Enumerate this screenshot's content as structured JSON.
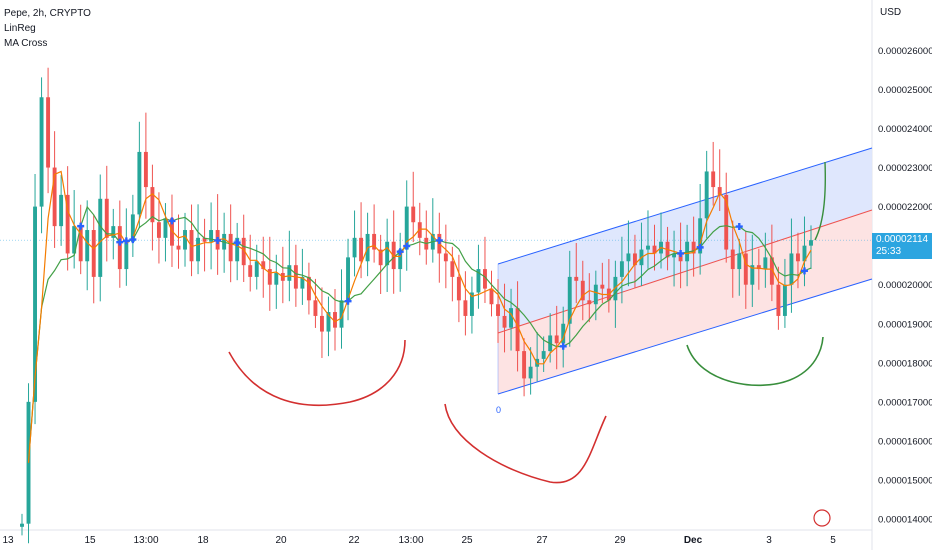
{
  "header": {
    "symbol_line": "Pepe, 2h, CRYPTO",
    "indicators": [
      "LinReg",
      "MA Cross"
    ],
    "currency": "USD"
  },
  "current_price": {
    "value": "0.00002114",
    "countdown": "25:33"
  },
  "chart_data": {
    "type": "candlestick",
    "title": "Pepe, 2h, CRYPTO",
    "y_ticks": [
      "0.000026000",
      "0.000025000",
      "0.000024000",
      "0.000023000",
      "0.000022000",
      "0.000021000",
      "0.000020000",
      "0.000019000",
      "0.000018000",
      "0.000017000",
      "0.000016000",
      "0.000015000",
      "0.000014000"
    ],
    "y_range": [
      1.388e-05,
      2.72e-05
    ],
    "x_ticks": [
      "13",
      "15",
      "13:00",
      "18",
      "20",
      "22",
      "13:00",
      "25",
      "27",
      "29",
      "Dec",
      "3",
      "5"
    ],
    "channel_label": "0",
    "colors": {
      "up": "#26a69a",
      "down": "#ef5350",
      "fast_ma": "#f57c00",
      "slow_ma": "#43a047",
      "channel_upper": "#2962ff",
      "channel_fill_upper": "#dbe4fd",
      "channel_fill_lower": "#fde0e0",
      "cross_marker": "#2962ff",
      "annotation_red": "#d32f2f",
      "annotation_green": "#388e3c",
      "price_line": "#2ca5e0"
    },
    "series": [
      {
        "name": "price",
        "close": [
          1.388e-05,
          1.7e-05,
          2.2e-05,
          2.48e-05,
          2.3e-05,
          2.15e-05,
          2.23e-05,
          2.08e-05,
          2.15e-05,
          2.06e-05,
          2.14e-05,
          2.02e-05,
          2.22e-05,
          2.12e-05,
          2.15e-05,
          2.04e-05,
          2.11e-05,
          2.18e-05,
          2.34e-05,
          2.25e-05,
          2.16e-05,
          2.12e-05,
          2.17e-05,
          2.1e-05,
          2.09e-05,
          2.14e-05,
          2.06e-05,
          2.12e-05,
          2.11e-05,
          2.14e-05,
          2.09e-05,
          2.13e-05,
          2.06e-05,
          2.12e-05,
          2.05e-05,
          2.02e-05,
          2.06e-05,
          2.04e-05,
          2e-05,
          2.03e-05,
          2.01e-05,
          2.05e-05,
          1.99e-05,
          2.02e-05,
          1.96e-05,
          1.92e-05,
          1.88e-05,
          1.93e-05,
          1.89e-05,
          1.96e-05,
          2.07e-05,
          2.12e-05,
          2.06e-05,
          2.13e-05,
          2.09e-05,
          2.05e-05,
          2.11e-05,
          2.04e-05,
          2.09e-05,
          2.2e-05,
          2.16e-05,
          2.12e-05,
          2.09e-05,
          2.13e-05,
          2.08e-05,
          2.06e-05,
          2.02e-05,
          1.96e-05,
          1.92e-05,
          1.98e-05,
          2.04e-05,
          1.99e-05,
          1.95e-05,
          1.92e-05,
          1.89e-05,
          1.94e-05,
          1.83e-05,
          1.76e-05,
          1.79e-05,
          1.81e-05,
          1.83e-05,
          1.87e-05,
          1.85e-05,
          1.9e-05,
          2.02e-05,
          2.01e-05,
          1.96e-05,
          1.95e-05,
          2e-05,
          1.99e-05,
          1.96e-05,
          2.02e-05,
          2.06e-05,
          2.08e-05,
          2.05e-05,
          2.09e-05,
          2.1e-05,
          2.08e-05,
          2.11e-05,
          2.07e-05,
          2.08e-05,
          2.06e-05,
          2.11e-05,
          2.08e-05,
          2.17e-05,
          2.29e-05,
          2.25e-05,
          2.23e-05,
          2.09e-05,
          2.04e-05,
          2.08e-05,
          2e-05,
          2.05e-05,
          2.04e-05,
          2.07e-05,
          2e-05,
          1.92e-05,
          2e-05,
          2.08e-05,
          2.06e-05,
          2.1e-05,
          2.114e-05
        ]
      },
      {
        "name": "Fast MA"
      },
      {
        "name": "Slow MA"
      }
    ],
    "annotations": [
      "red arc near 20",
      "red arc near 27",
      "green arc near Dec-3",
      "green arrow curve"
    ]
  }
}
